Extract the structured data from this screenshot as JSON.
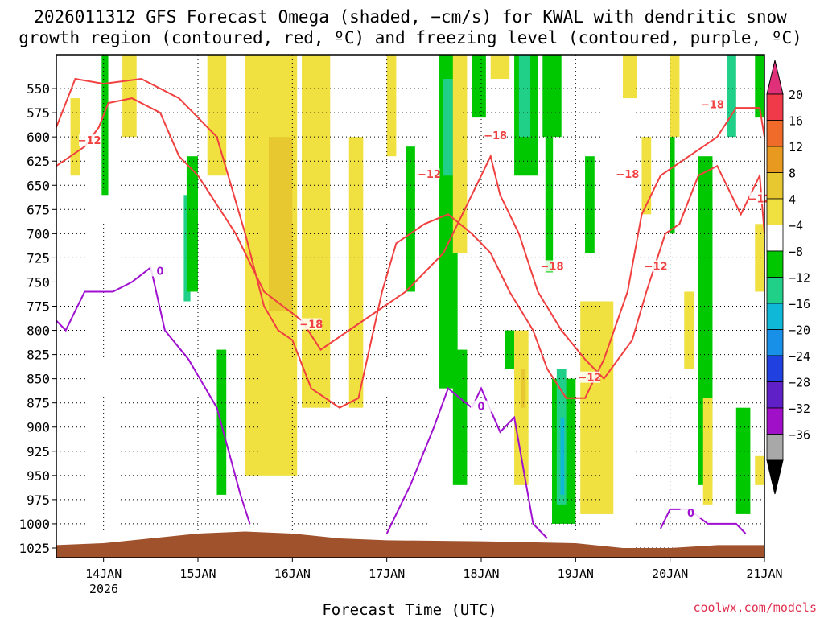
{
  "chart_data": {
    "type": "heatmap",
    "title_line1": "2026011312 GFS Forecast Omega (shaded, −cm/s) for KWAL with dendritic snow",
    "title_line2": "growth region (contoured, red, ºC) and freezing level (contoured, purple, ºC)",
    "xlabel": "Forecast Time (UTC)",
    "credit": "coolwx.com/models",
    "x_ticks": [
      "14JAN",
      "15JAN",
      "16JAN",
      "17JAN",
      "18JAN",
      "19JAN",
      "20JAN",
      "21JAN"
    ],
    "x_tick_days": [
      1,
      2,
      3,
      4,
      5,
      6,
      7,
      8
    ],
    "x_year_label": "2026",
    "xlim_days": [
      0.5,
      8
    ],
    "y_ticks": [
      550,
      575,
      600,
      625,
      650,
      675,
      700,
      725,
      750,
      775,
      800,
      825,
      850,
      875,
      900,
      925,
      950,
      975,
      1000,
      1025
    ],
    "ylim_hpa": [
      515,
      1035
    ],
    "colorbar": {
      "labels": [
        "20",
        "16",
        "12",
        "8",
        "4",
        "−4",
        "−8",
        "−12",
        "−16",
        "−20",
        "−24",
        "−28",
        "−32",
        "−36"
      ],
      "colors": [
        "#f03a4a",
        "#f06a2a",
        "#e89a20",
        "#e8c830",
        "#f0e040",
        "#ffffff",
        "#00c800",
        "#20d088",
        "#10b8d8",
        "#1890e8",
        "#2040e0",
        "#6020c8",
        "#a010c8",
        "#a8a8a8"
      ],
      "top_arrow_color": "#e0307a",
      "bottom_arrow_color": "#000000"
    },
    "shading": [
      {
        "t0": 0.98,
        "t1": 1.05,
        "p0": 515,
        "p1": 660,
        "level": "-8"
      },
      {
        "t0": 1.2,
        "t1": 1.35,
        "p0": 515,
        "p1": 600,
        "level": "4"
      },
      {
        "t0": 0.65,
        "t1": 0.75,
        "p0": 560,
        "p1": 640,
        "level": "4"
      },
      {
        "t0": 1.85,
        "t1": 1.92,
        "p0": 660,
        "p1": 770,
        "level": "-12"
      },
      {
        "t0": 1.88,
        "t1": 2.0,
        "p0": 620,
        "p1": 760,
        "level": "-8"
      },
      {
        "t0": 2.1,
        "t1": 2.3,
        "p0": 515,
        "p1": 640,
        "level": "4"
      },
      {
        "t0": 2.2,
        "t1": 2.3,
        "p0": 820,
        "p1": 970,
        "level": "-8"
      },
      {
        "t0": 2.5,
        "t1": 3.05,
        "p0": 515,
        "p1": 950,
        "level": "4"
      },
      {
        "t0": 2.75,
        "t1": 3.0,
        "p0": 600,
        "p1": 780,
        "level": "8"
      },
      {
        "t0": 3.1,
        "t1": 3.4,
        "p0": 515,
        "p1": 880,
        "level": "4"
      },
      {
        "t0": 3.6,
        "t1": 3.75,
        "p0": 600,
        "p1": 880,
        "level": "4"
      },
      {
        "t0": 4.0,
        "t1": 4.1,
        "p0": 515,
        "p1": 620,
        "level": "4"
      },
      {
        "t0": 4.2,
        "t1": 4.3,
        "p0": 610,
        "p1": 760,
        "level": "-8"
      },
      {
        "t0": 4.55,
        "t1": 4.75,
        "p0": 515,
        "p1": 860,
        "level": "-8"
      },
      {
        "t0": 4.6,
        "t1": 4.7,
        "p0": 540,
        "p1": 640,
        "level": "-12"
      },
      {
        "t0": 4.7,
        "t1": 4.85,
        "p0": 515,
        "p1": 720,
        "level": "4"
      },
      {
        "t0": 4.7,
        "t1": 4.85,
        "p0": 820,
        "p1": 960,
        "level": "-8"
      },
      {
        "t0": 4.9,
        "t1": 5.05,
        "p0": 515,
        "p1": 580,
        "level": "-8"
      },
      {
        "t0": 5.1,
        "t1": 5.3,
        "p0": 515,
        "p1": 540,
        "level": "4"
      },
      {
        "t0": 5.25,
        "t1": 5.35,
        "p0": 800,
        "p1": 840,
        "level": "-8"
      },
      {
        "t0": 5.35,
        "t1": 5.6,
        "p0": 515,
        "p1": 640,
        "level": "-8"
      },
      {
        "t0": 5.4,
        "t1": 5.52,
        "p0": 515,
        "p1": 600,
        "level": "-12"
      },
      {
        "t0": 5.35,
        "t1": 5.5,
        "p0": 800,
        "p1": 960,
        "level": "4"
      },
      {
        "t0": 5.42,
        "t1": 5.47,
        "p0": 840,
        "p1": 880,
        "level": "8"
      },
      {
        "t0": 5.65,
        "t1": 5.85,
        "p0": 515,
        "p1": 600,
        "level": "-8"
      },
      {
        "t0": 5.68,
        "t1": 5.76,
        "p0": 600,
        "p1": 740,
        "level": "-8"
      },
      {
        "t0": 5.75,
        "t1": 6.0,
        "p0": 850,
        "p1": 1000,
        "level": "-8"
      },
      {
        "t0": 5.8,
        "t1": 5.9,
        "p0": 840,
        "p1": 980,
        "level": "-12"
      },
      {
        "t0": 5.84,
        "t1": 5.88,
        "p0": 890,
        "p1": 970,
        "level": "-16"
      },
      {
        "t0": 6.1,
        "t1": 6.2,
        "p0": 620,
        "p1": 720,
        "level": "-8"
      },
      {
        "t0": 6.05,
        "t1": 6.4,
        "p0": 770,
        "p1": 990,
        "level": "4"
      },
      {
        "t0": 6.5,
        "t1": 6.65,
        "p0": 515,
        "p1": 560,
        "level": "4"
      },
      {
        "t0": 6.7,
        "t1": 6.8,
        "p0": 600,
        "p1": 680,
        "level": "4"
      },
      {
        "t0": 7.0,
        "t1": 7.1,
        "p0": 515,
        "p1": 600,
        "level": "4"
      },
      {
        "t0": 7.0,
        "t1": 7.05,
        "p0": 600,
        "p1": 700,
        "level": "-8"
      },
      {
        "t0": 7.15,
        "t1": 7.25,
        "p0": 760,
        "p1": 840,
        "level": "4"
      },
      {
        "t0": 7.3,
        "t1": 7.45,
        "p0": 620,
        "p1": 960,
        "level": "-8"
      },
      {
        "t0": 7.35,
        "t1": 7.45,
        "p0": 870,
        "p1": 980,
        "level": "4"
      },
      {
        "t0": 7.6,
        "t1": 7.7,
        "p0": 515,
        "p1": 600,
        "level": "-12"
      },
      {
        "t0": 7.7,
        "t1": 7.85,
        "p0": 880,
        "p1": 990,
        "level": "-8"
      },
      {
        "t0": 7.9,
        "t1": 8.0,
        "p0": 515,
        "p1": 580,
        "level": "-8"
      },
      {
        "t0": 7.9,
        "t1": 8.0,
        "p0": 690,
        "p1": 760,
        "level": "4"
      },
      {
        "t0": 7.9,
        "t1": 8.0,
        "p0": 930,
        "p1": 960,
        "level": "4"
      }
    ],
    "dgz_upper_contour_label": "−12",
    "dgz_lower_contour_label": "−18",
    "dgz_upper_contour": [
      [
        0.5,
        630
      ],
      [
        0.8,
        610
      ],
      [
        0.95,
        590
      ],
      [
        1.05,
        565
      ],
      [
        1.3,
        560
      ],
      [
        1.6,
        575
      ],
      [
        1.8,
        620
      ],
      [
        2.0,
        640
      ],
      [
        2.4,
        700
      ],
      [
        2.7,
        760
      ],
      [
        3.1,
        790
      ],
      [
        3.3,
        820
      ],
      [
        3.6,
        800
      ],
      [
        3.9,
        780
      ],
      [
        4.2,
        760
      ],
      [
        4.6,
        720
      ],
      [
        4.9,
        660
      ],
      [
        5.1,
        620
      ],
      [
        5.2,
        660
      ],
      [
        5.4,
        700
      ],
      [
        5.6,
        760
      ],
      [
        5.85,
        800
      ],
      [
        6.1,
        830
      ],
      [
        6.3,
        850
      ],
      [
        6.6,
        810
      ],
      [
        6.75,
        760
      ],
      [
        6.95,
        700
      ],
      [
        7.1,
        690
      ],
      [
        7.3,
        640
      ],
      [
        7.5,
        630
      ],
      [
        7.75,
        680
      ],
      [
        7.95,
        640
      ],
      [
        8.0,
        700
      ]
    ],
    "dgz_lower_contour": [
      [
        0.5,
        590
      ],
      [
        0.7,
        540
      ],
      [
        1.0,
        545
      ],
      [
        1.4,
        540
      ],
      [
        1.8,
        560
      ],
      [
        2.2,
        600
      ],
      [
        2.5,
        700
      ],
      [
        2.7,
        775
      ],
      [
        2.85,
        800
      ],
      [
        3.0,
        810
      ],
      [
        3.2,
        860
      ],
      [
        3.5,
        880
      ],
      [
        3.7,
        870
      ],
      [
        3.95,
        760
      ],
      [
        4.1,
        710
      ],
      [
        4.4,
        690
      ],
      [
        4.65,
        680
      ],
      [
        4.9,
        700
      ],
      [
        5.1,
        720
      ],
      [
        5.3,
        760
      ],
      [
        5.55,
        800
      ],
      [
        5.7,
        840
      ],
      [
        5.9,
        870
      ],
      [
        6.1,
        870
      ],
      [
        6.3,
        830
      ],
      [
        6.55,
        760
      ],
      [
        6.7,
        680
      ],
      [
        6.9,
        640
      ],
      [
        7.2,
        620
      ],
      [
        7.5,
        600
      ],
      [
        7.7,
        570
      ],
      [
        7.95,
        570
      ],
      [
        8.0,
        600
      ]
    ],
    "freezing_contour_label": "0",
    "freezing_contour": [
      [
        0.5,
        790
      ],
      [
        0.6,
        800
      ],
      [
        0.8,
        760
      ],
      [
        1.1,
        760
      ],
      [
        1.3,
        750
      ],
      [
        1.5,
        735
      ],
      [
        1.65,
        800
      ],
      [
        1.9,
        830
      ],
      [
        2.2,
        880
      ],
      [
        2.45,
        970
      ],
      [
        2.55,
        1000
      ]
    ],
    "freezing_contour2": [
      [
        4.0,
        1010
      ],
      [
        4.25,
        960
      ],
      [
        4.5,
        900
      ],
      [
        4.65,
        860
      ],
      [
        4.9,
        880
      ],
      [
        5.0,
        860
      ],
      [
        5.2,
        905
      ],
      [
        5.35,
        890
      ],
      [
        5.55,
        1000
      ],
      [
        5.7,
        1015
      ]
    ],
    "freezing_contour3": [
      [
        6.9,
        1005
      ],
      [
        7.0,
        985
      ],
      [
        7.2,
        985
      ],
      [
        7.4,
        1000
      ],
      [
        7.7,
        1000
      ],
      [
        7.8,
        1010
      ]
    ],
    "terrain_hpa": [
      [
        0.5,
        1022
      ],
      [
        1.0,
        1020
      ],
      [
        1.5,
        1015
      ],
      [
        2.0,
        1010
      ],
      [
        2.5,
        1008
      ],
      [
        3.0,
        1010
      ],
      [
        3.5,
        1015
      ],
      [
        4.0,
        1017
      ],
      [
        5.0,
        1018
      ],
      [
        6.0,
        1020
      ],
      [
        6.5,
        1025
      ],
      [
        7.0,
        1025
      ],
      [
        7.5,
        1022
      ],
      [
        8.0,
        1022
      ]
    ]
  }
}
